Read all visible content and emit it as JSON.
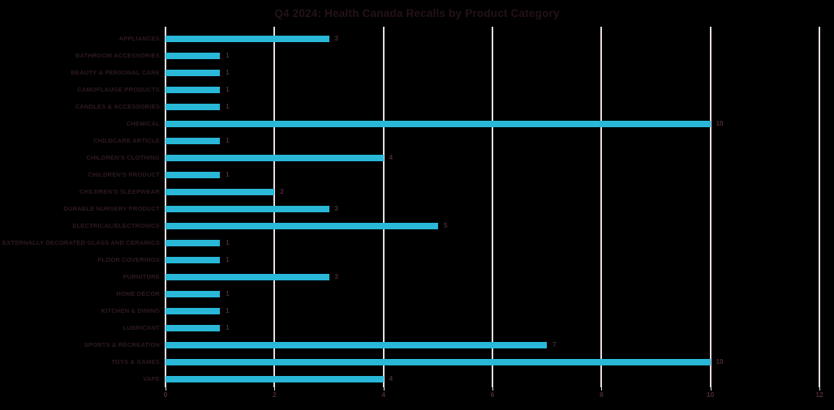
{
  "title": "Q4 2024: Health Canada Recalls by Product Category",
  "chart_data": {
    "type": "bar",
    "orientation": "horizontal",
    "title": "Q4 2024: Health Canada Recalls by Product Category",
    "categories": [
      "APPLIANCES",
      "BATHROOM ACCESSORIES",
      "BEAUTY & PERSONAL CARE",
      "CAMOFLAUGE PRODUCTS",
      "CANDLES & ACCESSORIES",
      "CHEMICAL",
      "CHILDCARE ARTICLE",
      "CHILDREN'S CLOTHING",
      "CHILDREN'S PRODUCT",
      "CHILDREN'S SLEEPWEAR",
      "DURABLE NURSERY PRODUCT",
      "ELECTRICAL/ELECTRONICS",
      "EXTERNALLY DECORATED GLASS AND CERAMICS",
      "FLOOR COVERINGS",
      "FURNITURE",
      "HOME DÉCOR",
      "KITCHEN & DINING",
      "LUBRICANT",
      "SPORTS & RECREATION",
      "TOYS & GAMES",
      "VAPE"
    ],
    "values": [
      3,
      1,
      1,
      1,
      1,
      10,
      1,
      4,
      1,
      2,
      3,
      5,
      1,
      1,
      3,
      1,
      1,
      1,
      7,
      10,
      4
    ],
    "data_labels": [
      "3",
      "1",
      "1",
      "1",
      "1",
      "10",
      "1",
      "4",
      "1",
      "2",
      "3",
      "5",
      "1",
      "1",
      "3",
      "1",
      "1",
      "1",
      "7",
      "10",
      "4"
    ],
    "xlabel": "",
    "ylabel": "",
    "xlim": [
      0,
      12
    ],
    "x_ticks": [
      0,
      2,
      4,
      6,
      8,
      10,
      12
    ],
    "grid": true,
    "legend": false,
    "colors": {
      "background": "#000000",
      "bar": "#29B8D8",
      "gridline": "#E8DCE2",
      "title_text": "#241218",
      "category_text": "#2E1A22",
      "value_text": "#4C2B37",
      "tick_text": "#4C2B37"
    }
  }
}
